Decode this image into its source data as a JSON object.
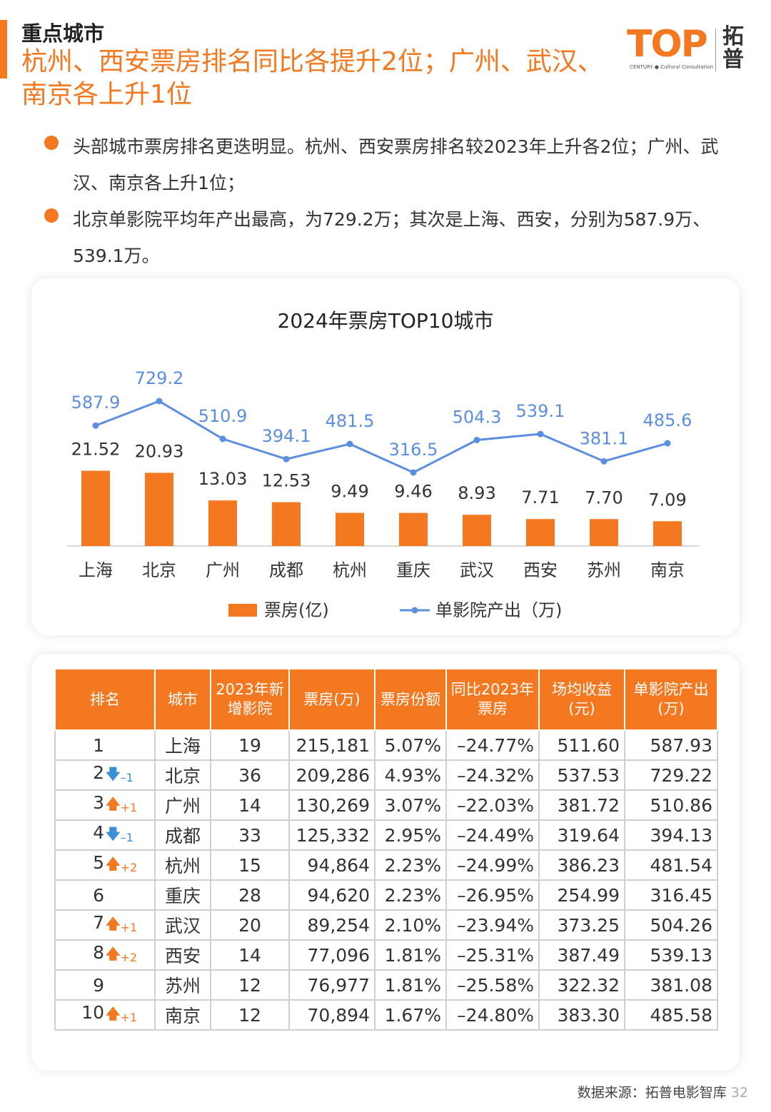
{
  "header": {
    "section_label": "重点城市",
    "headline": "杭州、西安票房排名同比各提升2位；广州、武汉、南京各上升1位"
  },
  "logo": {
    "brand": "TOP",
    "tagline": "CENTURY ● Cultural Consultation",
    "cn_name": "拓普"
  },
  "bullets": [
    "头部城市票房排名更迭明显。杭州、西安票房排名较2023年上升各2位；广州、武汉、南京各上升1位；",
    "北京单影院平均年产出最高，为729.2万；其次是上海、西安，分别为587.9万、539.1万。"
  ],
  "chart_data": {
    "type": "bar",
    "title": "2024年票房TOP10城市",
    "categories": [
      "上海",
      "北京",
      "广州",
      "成都",
      "杭州",
      "重庆",
      "武汉",
      "西安",
      "苏州",
      "南京"
    ],
    "series": [
      {
        "name": "票房(亿)",
        "kind": "bar",
        "color": "#f47820",
        "values": [
          21.52,
          20.93,
          13.03,
          12.53,
          9.49,
          9.46,
          8.93,
          7.71,
          7.7,
          7.09
        ]
      },
      {
        "name": "单影院产出（万)",
        "kind": "line",
        "color": "#5b8ee0",
        "values": [
          587.9,
          729.2,
          510.9,
          394.1,
          481.5,
          316.5,
          504.3,
          539.1,
          381.1,
          485.6
        ]
      }
    ],
    "grid": false,
    "legend_position": "bottom"
  },
  "table": {
    "headers": [
      "排名",
      "城市",
      "2023年新增影院",
      "票房(万)",
      "票房份额",
      "同比2023年票房",
      "场均收益(元)",
      "单影院产出(万)"
    ],
    "rows": [
      {
        "rank": "1",
        "change_dir": "",
        "change": "",
        "city": "上海",
        "new_cinemas": "19",
        "box_office": "215,181",
        "share": "5.07%",
        "yoy": "–24.77%",
        "avg_rev": "511.60",
        "per_cinema": "587.93"
      },
      {
        "rank": "2",
        "change_dir": "down",
        "change": "–1",
        "city": "北京",
        "new_cinemas": "36",
        "box_office": "209,286",
        "share": "4.93%",
        "yoy": "–24.32%",
        "avg_rev": "537.53",
        "per_cinema": "729.22"
      },
      {
        "rank": "3",
        "change_dir": "up",
        "change": "+1",
        "city": "广州",
        "new_cinemas": "14",
        "box_office": "130,269",
        "share": "3.07%",
        "yoy": "–22.03%",
        "avg_rev": "381.72",
        "per_cinema": "510.86"
      },
      {
        "rank": "4",
        "change_dir": "down",
        "change": "–1",
        "city": "成都",
        "new_cinemas": "33",
        "box_office": "125,332",
        "share": "2.95%",
        "yoy": "–24.49%",
        "avg_rev": "319.64",
        "per_cinema": "394.13"
      },
      {
        "rank": "5",
        "change_dir": "up",
        "change": "+2",
        "city": "杭州",
        "new_cinemas": "15",
        "box_office": "94,864",
        "share": "2.23%",
        "yoy": "–24.99%",
        "avg_rev": "386.23",
        "per_cinema": "481.54"
      },
      {
        "rank": "6",
        "change_dir": "",
        "change": "",
        "city": "重庆",
        "new_cinemas": "28",
        "box_office": "94,620",
        "share": "2.23%",
        "yoy": "–26.95%",
        "avg_rev": "254.99",
        "per_cinema": "316.45"
      },
      {
        "rank": "7",
        "change_dir": "up",
        "change": "+1",
        "city": "武汉",
        "new_cinemas": "20",
        "box_office": "89,254",
        "share": "2.10%",
        "yoy": "–23.94%",
        "avg_rev": "373.25",
        "per_cinema": "504.26"
      },
      {
        "rank": "8",
        "change_dir": "up",
        "change": "+2",
        "city": "西安",
        "new_cinemas": "14",
        "box_office": "77,096",
        "share": "1.81%",
        "yoy": "–25.31%",
        "avg_rev": "387.49",
        "per_cinema": "539.13"
      },
      {
        "rank": "9",
        "change_dir": "",
        "change": "",
        "city": "苏州",
        "new_cinemas": "12",
        "box_office": "76,977",
        "share": "1.81%",
        "yoy": "–25.58%",
        "avg_rev": "322.32",
        "per_cinema": "381.08"
      },
      {
        "rank": "10",
        "change_dir": "up",
        "change": "+1",
        "city": "南京",
        "new_cinemas": "12",
        "box_office": "70,894",
        "share": "1.67%",
        "yoy": "–24.80%",
        "avg_rev": "383.30",
        "per_cinema": "485.58"
      }
    ]
  },
  "footer": {
    "source": "数据来源：拓普电影智库",
    "page": "32"
  },
  "colors": {
    "accent": "#f47820",
    "line": "#5b8ee0",
    "down": "#3b8fd6"
  }
}
